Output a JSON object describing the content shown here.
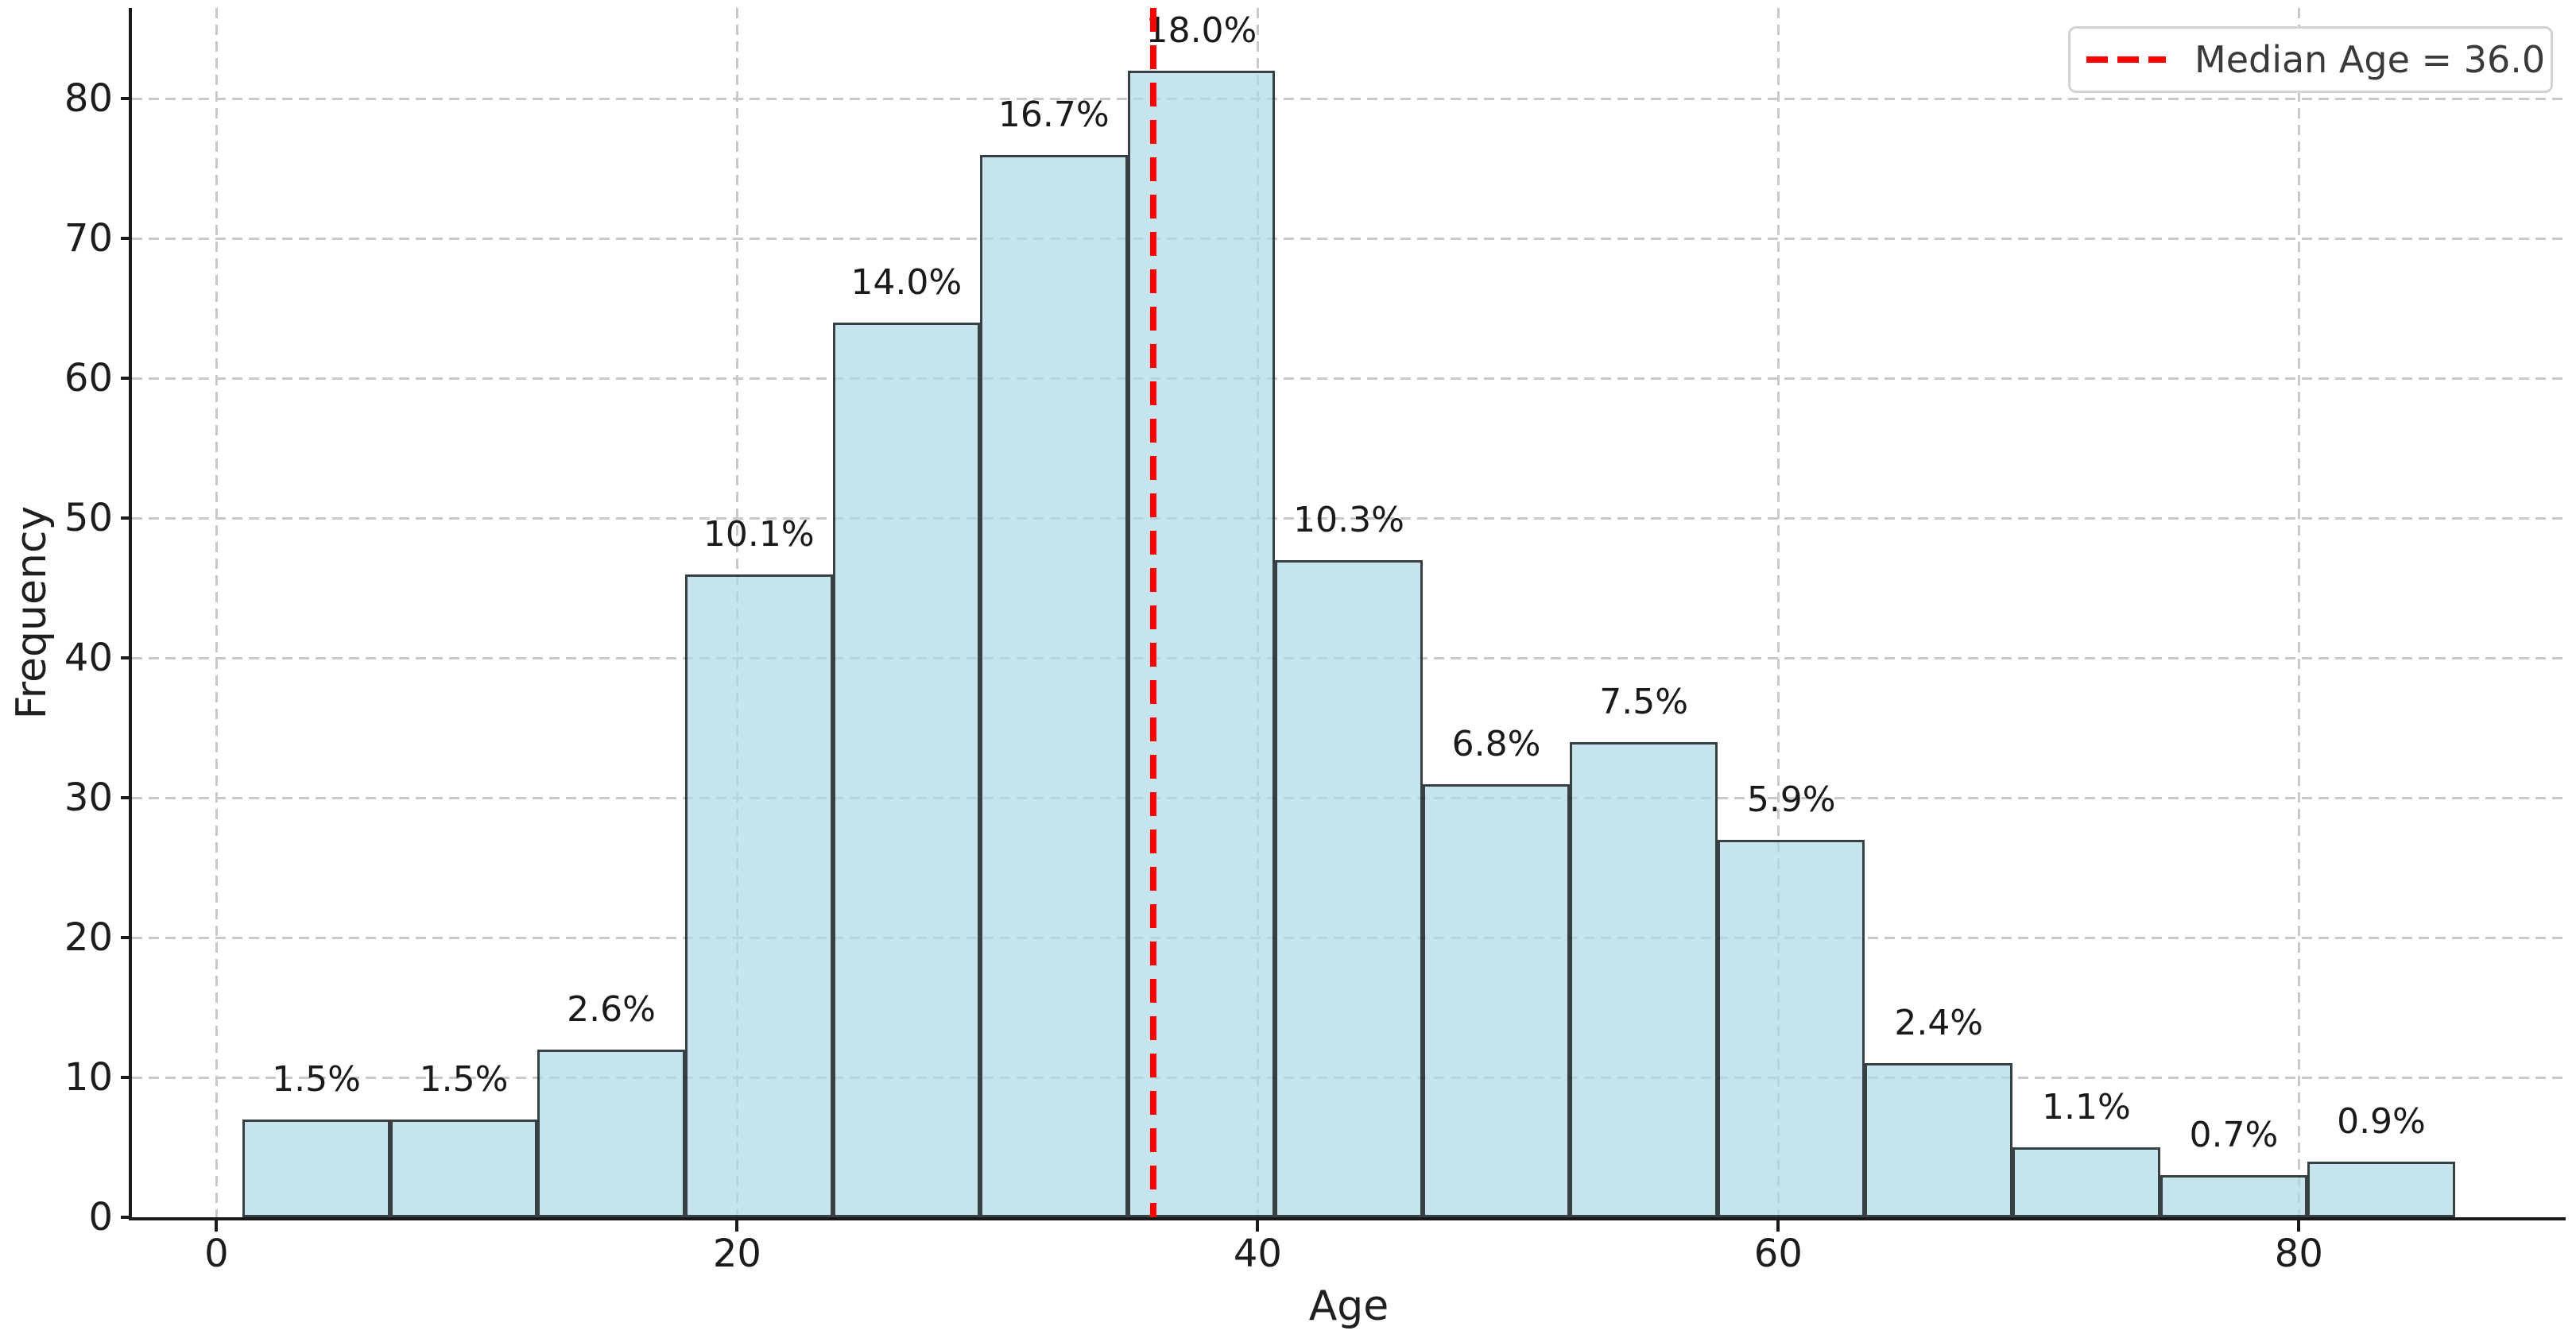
{
  "figure": {
    "background": "#ffffff",
    "xlabel": "Age",
    "ylabel": "Frequency"
  },
  "chart_data": {
    "type": "bar",
    "subtype": "histogram",
    "title": "",
    "xlabel": "Age",
    "ylabel": "Frequency",
    "bin_edges": [
      1.0,
      6.67,
      12.33,
      18.0,
      23.67,
      29.33,
      35.0,
      40.67,
      46.33,
      52.0,
      57.67,
      63.33,
      69.0,
      74.67,
      80.33,
      86.0
    ],
    "counts": [
      7,
      7,
      12,
      46,
      64,
      76,
      82,
      47,
      31,
      34,
      27,
      11,
      5,
      3,
      4
    ],
    "percent_labels": [
      "1.5%",
      "1.5%",
      "2.6%",
      "10.1%",
      "14.0%",
      "16.7%",
      "18.0%",
      "10.3%",
      "6.8%",
      "7.5%",
      "5.9%",
      "2.4%",
      "1.1%",
      "0.7%",
      "0.9%"
    ],
    "x_ticks": [
      0,
      20,
      40,
      60,
      80
    ],
    "y_ticks": [
      0,
      10,
      20,
      30,
      40,
      50,
      60,
      70,
      80
    ],
    "xlim": [
      -3.25,
      90.25
    ],
    "ylim": [
      0,
      86.5
    ],
    "grid": true,
    "grid_style": "dashed",
    "median": {
      "value": 36.0,
      "legend_label": "Median Age = 36.0",
      "line_style": "dashed",
      "color": "#ff0000"
    },
    "legend_position": "upper right",
    "style": {
      "bar_fill": "rgba(173,216,230,0.7)",
      "bar_edge": "rgba(0,0,0,0.72)",
      "median_color": "#ff0000",
      "grid_color": "#c9c9c9",
      "axis_color": "#1a1a1a",
      "tick_label_color": "#1c1c1c",
      "legend_border": "#d2d2d2",
      "legend_text_color": "#3a3a3a"
    }
  }
}
